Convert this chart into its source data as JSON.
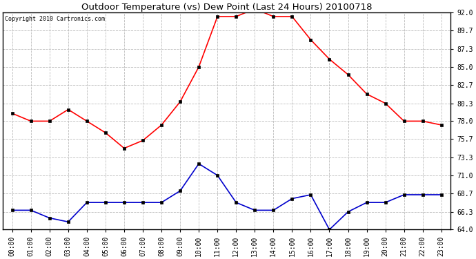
{
  "title": "Outdoor Temperature (vs) Dew Point (Last 24 Hours) 20100718",
  "copyright": "Copyright 2010 Cartronics.com",
  "hours": [
    "00:00",
    "01:00",
    "02:00",
    "03:00",
    "04:00",
    "05:00",
    "06:00",
    "07:00",
    "08:00",
    "09:00",
    "10:00",
    "11:00",
    "12:00",
    "13:00",
    "14:00",
    "15:00",
    "16:00",
    "17:00",
    "18:00",
    "19:00",
    "20:00",
    "21:00",
    "22:00",
    "23:00"
  ],
  "temp": [
    79.0,
    78.0,
    78.0,
    79.5,
    78.0,
    76.5,
    74.5,
    75.5,
    77.5,
    80.5,
    85.0,
    91.5,
    91.5,
    92.5,
    91.5,
    91.5,
    88.5,
    86.0,
    84.0,
    81.5,
    80.3,
    78.0,
    78.0,
    77.5
  ],
  "dew": [
    66.5,
    66.5,
    65.5,
    65.0,
    67.5,
    67.5,
    67.5,
    67.5,
    67.5,
    69.0,
    72.5,
    71.0,
    67.5,
    66.5,
    66.5,
    68.0,
    68.5,
    64.0,
    66.3,
    67.5,
    67.5,
    68.5,
    68.5,
    68.5
  ],
  "temp_color": "#ff0000",
  "dew_color": "#0000cc",
  "bg_color": "#ffffff",
  "grid_color": "#bbbbbb",
  "yticks": [
    64.0,
    66.3,
    68.7,
    71.0,
    73.3,
    75.7,
    78.0,
    80.3,
    82.7,
    85.0,
    87.3,
    89.7,
    92.0
  ],
  "ymin": 64.0,
  "ymax": 92.0
}
